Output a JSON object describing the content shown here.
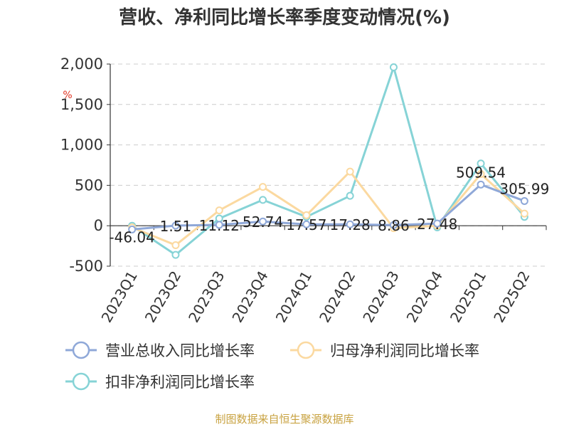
{
  "chart_data": {
    "type": "line",
    "title": "营收、净利同比增长率季度变动情况(%)",
    "unit_label": "%",
    "categories": [
      "2023Q1",
      "2023Q2",
      "2023Q3",
      "2023Q4",
      "2024Q1",
      "2024Q2",
      "2024Q3",
      "2024Q4",
      "2025Q1",
      "2025Q2"
    ],
    "ylim": [
      -500,
      2000
    ],
    "yticks": [
      -500,
      0,
      500,
      1000,
      1500,
      2000
    ],
    "ytick_labels": [
      "-500",
      "0",
      "500",
      "1,000",
      "1,500",
      "2,000"
    ],
    "grid": true,
    "legend_position": "bottom",
    "series": [
      {
        "name": "营业总收入同比增长率",
        "color": "#8fa8d8",
        "values": [
          -46.04,
          1.51,
          11.12,
          52.74,
          17.57,
          17.28,
          8.86,
          27.48,
          509.54,
          305.99
        ],
        "labels": [
          "-46.04",
          "1.51",
          "11.12",
          "52.74",
          "17.57",
          "17.28",
          "8.86",
          "27.48",
          "509.54",
          "305.99"
        ]
      },
      {
        "name": "归母净利润同比增长率",
        "color": "#fbd9a0",
        "values": [
          -20,
          -240,
          190,
          480,
          130,
          670,
          -30,
          0,
          640,
          150
        ]
      },
      {
        "name": "扣非净利润同比增长率",
        "color": "#86d3d6",
        "values": [
          0,
          -360,
          90,
          320,
          110,
          370,
          1960,
          -20,
          770,
          110
        ]
      }
    ],
    "source": "制图数据来自恒生聚源数据库"
  }
}
